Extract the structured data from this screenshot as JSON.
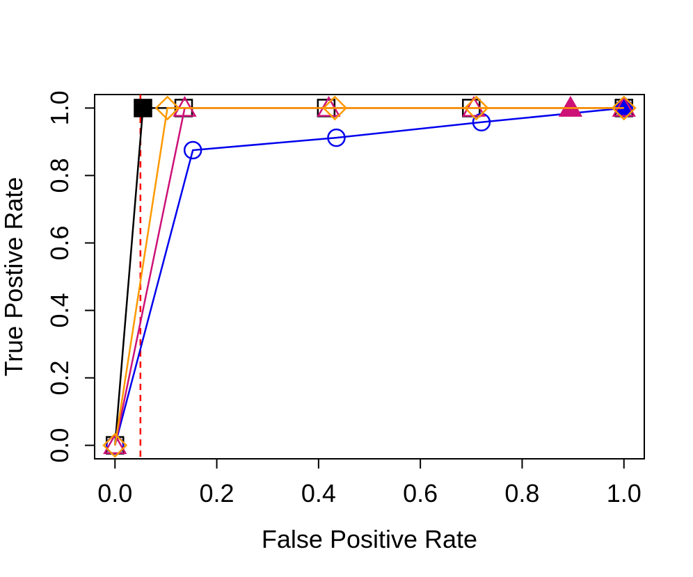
{
  "chart_data": {
    "type": "line",
    "title": "",
    "xlabel": "False Positive Rate",
    "ylabel": "True Postive Rate",
    "xlim": [
      -0.04,
      1.04
    ],
    "ylim": [
      -0.04,
      1.04
    ],
    "x_ticks": [
      "0.0",
      "0.2",
      "0.4",
      "0.6",
      "0.8",
      "1.0"
    ],
    "y_ticks": [
      "0.0",
      "0.2",
      "0.4",
      "0.6",
      "0.8",
      "1.0"
    ],
    "grid": false,
    "reference_line": {
      "x": 0.05,
      "color": "#ff0000",
      "style": "dashed"
    },
    "series": [
      {
        "name": "black-squares",
        "color": "#000000",
        "marker": "square",
        "line_style": "solid",
        "x": [
          0.0,
          0.055,
          0.135,
          0.415,
          0.7,
          1.0
        ],
        "y": [
          0.0,
          1.0,
          1.0,
          1.0,
          1.0,
          1.0
        ],
        "filled_index": 1
      },
      {
        "name": "blue-circles",
        "color": "#0000ee",
        "marker": "circle",
        "line_style": "solid",
        "x": [
          0.0,
          0.153,
          0.435,
          0.72,
          1.0
        ],
        "y": [
          0.0,
          0.875,
          0.912,
          0.958,
          1.0
        ],
        "filled_index": 4
      },
      {
        "name": "magenta-triangles",
        "color": "#cc1177",
        "marker": "triangle",
        "line_style": "solid",
        "x": [
          0.0,
          0.137,
          0.42,
          0.705,
          0.895,
          1.0
        ],
        "y": [
          0.0,
          1.0,
          1.0,
          1.0,
          1.0,
          1.0
        ],
        "filled_index": 4
      },
      {
        "name": "orange-diamonds",
        "color": "#ff9900",
        "marker": "diamond",
        "line_style": "solid",
        "x": [
          0.0,
          0.103,
          0.432,
          0.71,
          1.0
        ],
        "y": [
          0.0,
          1.0,
          1.0,
          1.0,
          1.0
        ],
        "filled_index": -1
      }
    ]
  }
}
